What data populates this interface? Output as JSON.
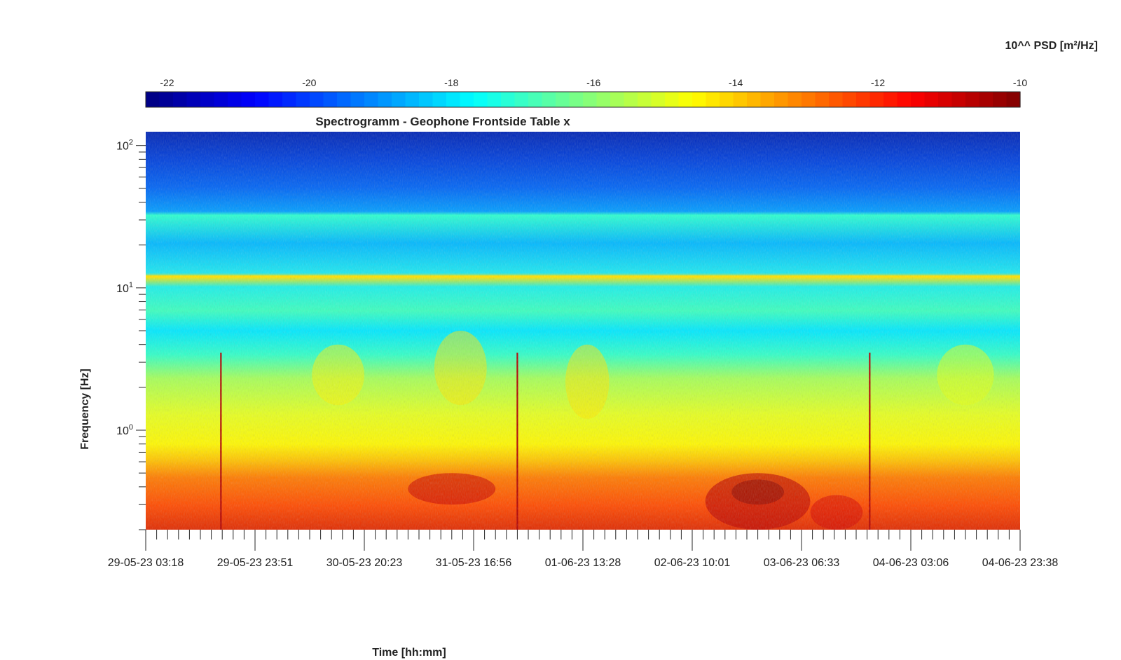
{
  "chart_data": {
    "type": "heatmap",
    "title": "Spectrogramm - Geophone Frontside Table x",
    "xlabel": "Time [hh:mm]",
    "ylabel": "Frequency [Hz]",
    "x_tick_labels": [
      "29-05-23 03:18",
      "29-05-23 23:51",
      "30-05-23 20:23",
      "31-05-23 16:56",
      "01-06-23 13:28",
      "02-06-23 10:01",
      "03-06-23 06:33",
      "04-06-23 03:06",
      "04-06-23 23:38"
    ],
    "y_scale": "log",
    "ylim": [
      0.2,
      125
    ],
    "y_ticks": [
      {
        "value": 1,
        "base": "10",
        "exp": "0"
      },
      {
        "value": 10,
        "base": "10",
        "exp": "1"
      },
      {
        "value": 100,
        "base": "10",
        "exp": "2"
      }
    ],
    "colorbar": {
      "label": "10^^ PSD [m²/Hz]",
      "placement": "top",
      "range": [
        -22.3,
        -10
      ],
      "ticks": [
        "-22",
        "-20",
        "-18",
        "-16",
        "-14",
        "-12",
        "-10"
      ],
      "tick_values": [
        -22,
        -20,
        -18,
        -16,
        -14,
        -12,
        -10
      ],
      "colormap": "jet"
    },
    "features": {
      "broadband_spikes_at_fraction_of_time": [
        0.086,
        0.425,
        0.828
      ],
      "persistent_line_hz": 12,
      "quiet_high_frequency_band_hz": [
        40,
        125
      ],
      "low_frequency_high_energy_band_hz": [
        0.2,
        0.7
      ]
    }
  }
}
